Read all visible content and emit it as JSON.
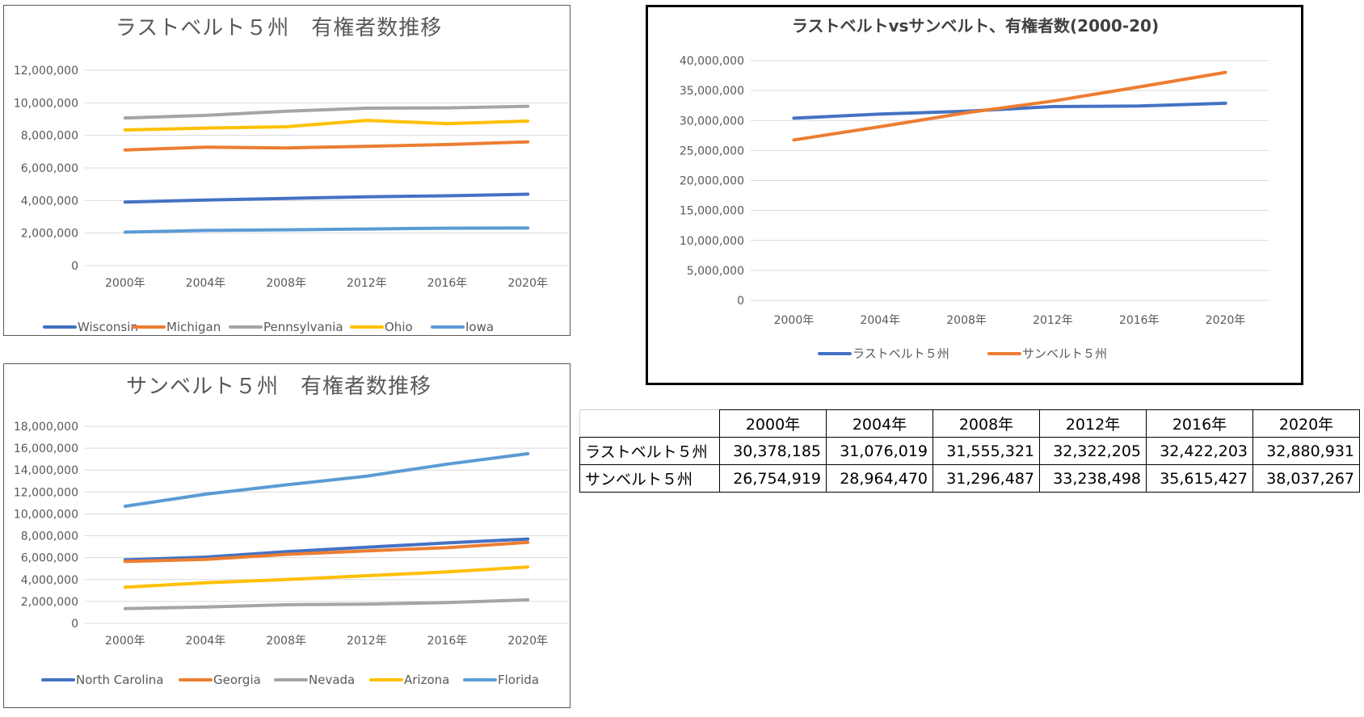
{
  "colors": {
    "blue": "#4472C4",
    "orange": "#ED7D31",
    "gray": "#A5A5A5",
    "yellow": "#FFC000",
    "lightblue": "#5B9BD5",
    "grid": "#D9D9D9",
    "text": "#595959"
  },
  "chart_data": [
    {
      "id": "rust",
      "type": "line",
      "title": "ラストベルト５州　有権者数推移",
      "categories": [
        "2000年",
        "2004年",
        "2008年",
        "2012年",
        "2016年",
        "2020年"
      ],
      "ylim": [
        0,
        12000000
      ],
      "ytick_step": 2000000,
      "yticks": [
        "0",
        "2,000,000",
        "4,000,000",
        "6,000,000",
        "8,000,000",
        "10,000,000",
        "12,000,000"
      ],
      "grid": true,
      "legend": "bottom",
      "series": [
        {
          "name": "Wisconsin",
          "color": "#4472C4",
          "values": [
            3900000,
            4030000,
            4130000,
            4230000,
            4290000,
            4390000
          ]
        },
        {
          "name": "Michigan",
          "color": "#ED7D31",
          "values": [
            7100000,
            7280000,
            7230000,
            7330000,
            7440000,
            7600000
          ]
        },
        {
          "name": "Pennsylvania",
          "color": "#A5A5A5",
          "values": [
            9070000,
            9230000,
            9480000,
            9670000,
            9690000,
            9790000
          ]
        },
        {
          "name": "Ohio",
          "color": "#FFC000",
          "values": [
            8330000,
            8450000,
            8530000,
            8920000,
            8720000,
            8880000
          ]
        },
        {
          "name": "Iowa",
          "color": "#5B9BD5",
          "values": [
            2060000,
            2160000,
            2200000,
            2250000,
            2300000,
            2310000
          ]
        }
      ]
    },
    {
      "id": "sun",
      "type": "line",
      "title": "サンベルト５州　有権者数推移",
      "categories": [
        "2000年",
        "2004年",
        "2008年",
        "2012年",
        "2016年",
        "2020年"
      ],
      "ylim": [
        0,
        18000000
      ],
      "ytick_step": 2000000,
      "yticks": [
        "0",
        "2,000,000",
        "4,000,000",
        "6,000,000",
        "8,000,000",
        "10,000,000",
        "12,000,000",
        "14,000,000",
        "16,000,000",
        "18,000,000"
      ],
      "grid": true,
      "legend": "bottom",
      "series": [
        {
          "name": "North Carolina",
          "color": "#4472C4",
          "values": [
            5800000,
            6050000,
            6550000,
            6950000,
            7350000,
            7700000
          ]
        },
        {
          "name": "Georgia",
          "color": "#ED7D31",
          "values": [
            5650000,
            5850000,
            6300000,
            6620000,
            6920000,
            7400000
          ]
        },
        {
          "name": "Nevada",
          "color": "#A5A5A5",
          "values": [
            1350000,
            1500000,
            1700000,
            1750000,
            1900000,
            2150000
          ]
        },
        {
          "name": "Arizona",
          "color": "#FFC000",
          "values": [
            3300000,
            3700000,
            4000000,
            4350000,
            4700000,
            5150000
          ]
        },
        {
          "name": "Florida",
          "color": "#5B9BD5",
          "values": [
            10700000,
            11800000,
            12650000,
            13450000,
            14550000,
            15500000
          ]
        }
      ]
    },
    {
      "id": "cmp",
      "type": "line",
      "title": "ラストベルトvsサンベルト、有権者数(2000-20)",
      "categories": [
        "2000年",
        "2004年",
        "2008年",
        "2012年",
        "2016年",
        "2020年"
      ],
      "ylim": [
        0,
        40000000
      ],
      "ytick_step": 5000000,
      "yticks": [
        "0",
        "5,000,000",
        "10,000,000",
        "15,000,000",
        "20,000,000",
        "25,000,000",
        "30,000,000",
        "35,000,000",
        "40,000,000"
      ],
      "grid": true,
      "legend": "bottom",
      "series": [
        {
          "name": "ラストベルト５州",
          "color": "#4472C4",
          "values": [
            30378185,
            31076019,
            31555321,
            32322205,
            32422203,
            32880931
          ]
        },
        {
          "name": "サンベルト５州",
          "color": "#ED7D31",
          "values": [
            26754919,
            28964470,
            31296487,
            33238498,
            35615427,
            38037267
          ]
        }
      ]
    }
  ],
  "table": {
    "header": [
      "2000年",
      "2004年",
      "2008年",
      "2012年",
      "2016年",
      "2020年"
    ],
    "rows": [
      {
        "label": "ラストベルト５州",
        "values": [
          "30,378,185",
          "31,076,019",
          "31,555,321",
          "32,322,205",
          "32,422,203",
          "32,880,931"
        ]
      },
      {
        "label": "サンベルト５州",
        "values": [
          "26,754,919",
          "28,964,470",
          "31,296,487",
          "33,238,498",
          "35,615,427",
          "38,037,267"
        ]
      }
    ]
  }
}
